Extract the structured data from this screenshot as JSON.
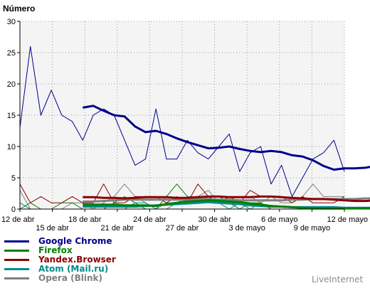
{
  "chart_data": {
    "type": "line",
    "ylabel": "Número",
    "ylim": [
      0,
      30
    ],
    "yticks": [
      0,
      5,
      10,
      15,
      20,
      25,
      30
    ],
    "xlim": [
      0,
      30
    ],
    "xticks_top": [
      {
        "x": 0,
        "label": "12 de abr"
      },
      {
        "x": 6,
        "label": "18 de abr"
      },
      {
        "x": 12,
        "label": "24 de abr"
      },
      {
        "x": 18,
        "label": "30 de abr"
      },
      {
        "x": 24,
        "label": "6 de mayo"
      },
      {
        "x": 30,
        "label": "12 de mayo"
      }
    ],
    "xticks_bottom": [
      {
        "x": 3,
        "label": "15 de abr"
      },
      {
        "x": 9,
        "label": "21 de abr"
      },
      {
        "x": 15,
        "label": "27 de abr"
      },
      {
        "x": 21,
        "label": "3 de mayo"
      },
      {
        "x": 27,
        "label": "9 de mayo"
      }
    ],
    "grid": true,
    "series": [
      {
        "name": "Google Chrome",
        "color": "#00008b",
        "values": [
          13,
          26,
          15,
          19,
          15,
          14,
          11,
          15,
          16,
          15,
          11,
          7,
          8,
          16,
          8,
          8,
          11,
          9,
          8,
          10,
          12,
          6,
          9,
          10,
          4,
          7,
          2,
          5,
          8,
          9,
          11,
          6
        ],
        "trend_start": 6,
        "trend": [
          16.2,
          16.5,
          15.7,
          15.0,
          14.8,
          13.2,
          12.3,
          12.5,
          12.0,
          11.3,
          10.7,
          10.2,
          9.7,
          9.8,
          10.0,
          9.6,
          9.3,
          9.1,
          9.3,
          9.1,
          8.6,
          8.4,
          7.8,
          6.9,
          6.3,
          6.5,
          6.5,
          6.6,
          6.9
        ]
      },
      {
        "name": "Firefox",
        "color": "#008000",
        "values": [
          0,
          1,
          0,
          0,
          1,
          1,
          0,
          0,
          0,
          1,
          2,
          1,
          0,
          0,
          2,
          4,
          2,
          1,
          2,
          2,
          1,
          0,
          1,
          1,
          0,
          0,
          0,
          0,
          0,
          0,
          0,
          0
        ],
        "trend_start": 6,
        "trend": [
          0.7,
          0.7,
          0.7,
          0.7,
          0.6,
          0.6,
          0.6,
          0.5,
          0.8,
          1.0,
          1.2,
          1.3,
          1.4,
          1.3,
          1.2,
          1.1,
          0.9,
          0.7,
          0.5,
          0.4,
          0.3,
          0.2,
          0.1,
          0.1,
          0.1,
          0.1,
          0.1,
          0.1,
          0.1
        ]
      },
      {
        "name": "Yandex.Browser",
        "color": "#8b0000",
        "values": [
          4,
          1,
          2,
          1,
          1,
          2,
          1,
          1,
          4,
          1,
          1,
          2,
          2,
          2,
          1,
          2,
          1,
          4,
          2,
          1,
          2,
          1,
          3,
          2,
          2,
          2,
          1,
          2,
          1,
          1,
          1,
          2
        ],
        "trend_start": 6,
        "trend": [
          1.9,
          1.9,
          1.8,
          1.8,
          1.7,
          1.8,
          1.9,
          1.9,
          1.9,
          1.8,
          1.8,
          1.9,
          2.0,
          2.0,
          1.9,
          1.9,
          1.9,
          2.0,
          2.0,
          1.9,
          1.8,
          1.7,
          1.6,
          1.6,
          1.5,
          1.4,
          1.3,
          1.3,
          1.4
        ]
      },
      {
        "name": "Atom (Mail.ru)",
        "color": "#008b8b",
        "values": [
          1,
          0,
          0,
          0,
          0,
          0,
          0,
          0,
          0,
          0,
          0,
          1,
          1,
          0,
          0,
          1,
          1,
          1,
          2,
          1,
          0,
          1,
          0,
          1,
          0,
          0,
          0,
          0,
          0,
          0,
          0,
          0
        ],
        "trend_start": 6,
        "trend": [
          0.4,
          0.4,
          0.4,
          0.4,
          0.4,
          0.4,
          0.5,
          0.6,
          0.7,
          0.8,
          0.9,
          1.0,
          1.1,
          1.0,
          0.9,
          0.8,
          0.6,
          0.5,
          0.4,
          0.4,
          0.3,
          0.3,
          0.3,
          0.3,
          0.3,
          0.2,
          0.2,
          0.2,
          0.2
        ]
      },
      {
        "name": "Opera (Blink)",
        "color": "#808080",
        "values": [
          3,
          0,
          0,
          0,
          0,
          1,
          1,
          0,
          1,
          2,
          4,
          2,
          1,
          0,
          1,
          1,
          2,
          2,
          3,
          1,
          2,
          2,
          2,
          1,
          2,
          1,
          1,
          2,
          4,
          2,
          2,
          2
        ],
        "trend_start": 6,
        "trend": [
          1.2,
          1.2,
          1.3,
          1.4,
          1.5,
          1.5,
          1.5,
          1.5,
          1.5,
          1.5,
          1.5,
          1.6,
          1.6,
          1.5,
          1.5,
          1.4,
          1.4,
          1.4,
          1.4,
          1.4,
          1.5,
          1.5,
          1.6,
          1.6,
          1.6,
          1.6,
          1.6,
          1.7,
          1.7
        ]
      }
    ]
  },
  "legend": [
    {
      "label": "Google Chrome",
      "color": "#00008b"
    },
    {
      "label": "Firefox",
      "color": "#008000"
    },
    {
      "label": "Yandex.Browser",
      "color": "#8b0000"
    },
    {
      "label": "Atom (Mail.ru)",
      "color": "#008b8b"
    },
    {
      "label": "Opera (Blink)",
      "color": "#808080"
    }
  ],
  "brand": "LiveInternet"
}
